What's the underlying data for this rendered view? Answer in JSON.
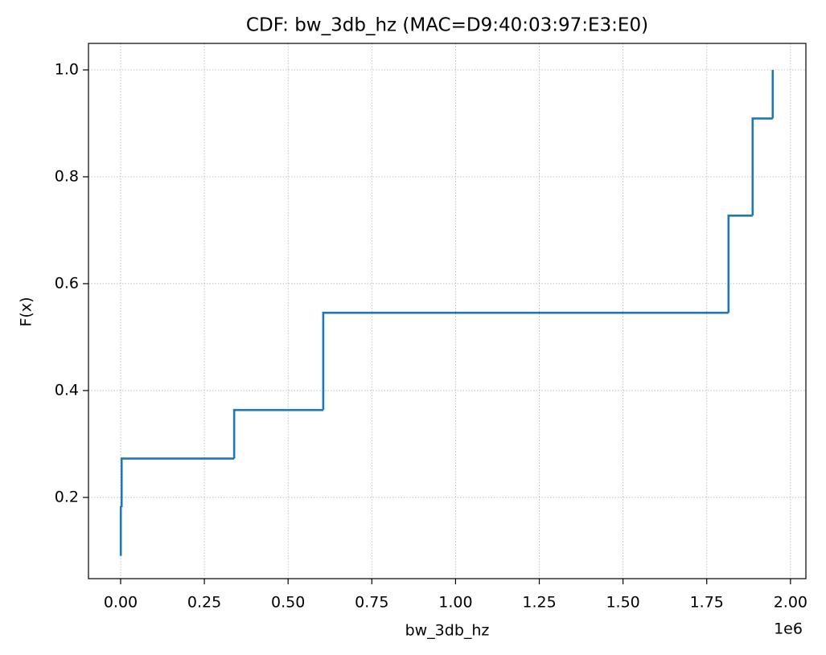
{
  "chart_data": {
    "type": "line",
    "drawstyle": "steps-post",
    "title": "CDF: bw_3db_hz (MAC=D9:40:03:97:E3:E0)",
    "x_label": "bw_3db_hz",
    "y_label": "F(x)",
    "x_offset_label": "1e6",
    "x": [
      0,
      500,
      3000,
      339000,
      605000,
      1815000,
      1887000,
      1947000
    ],
    "series": [
      {
        "color": "#1f77b4",
        "values": [
          0.0909,
          0.1818,
          0.2727,
          0.3636,
          0.5455,
          0.7273,
          0.9091,
          1.0
        ]
      }
    ],
    "xlim": [
      -96000,
      2046000
    ],
    "xticks": [
      {
        "value": 0,
        "label": "0.00"
      },
      {
        "value": 250000,
        "label": "0.25"
      },
      {
        "value": 500000,
        "label": "0.50"
      },
      {
        "value": 750000,
        "label": "0.75"
      },
      {
        "value": 1000000,
        "label": "1.00"
      },
      {
        "value": 1250000,
        "label": "1.25"
      },
      {
        "value": 1500000,
        "label": "1.50"
      },
      {
        "value": 1750000,
        "label": "1.75"
      },
      {
        "value": 2000000,
        "label": "2.00"
      }
    ],
    "ylim": [
      0.048,
      1.0496
    ],
    "yticks": [
      0.2,
      0.4,
      0.6,
      0.8,
      {
        "value": 1,
        "label": "1.0"
      }
    ],
    "grid": true
  }
}
